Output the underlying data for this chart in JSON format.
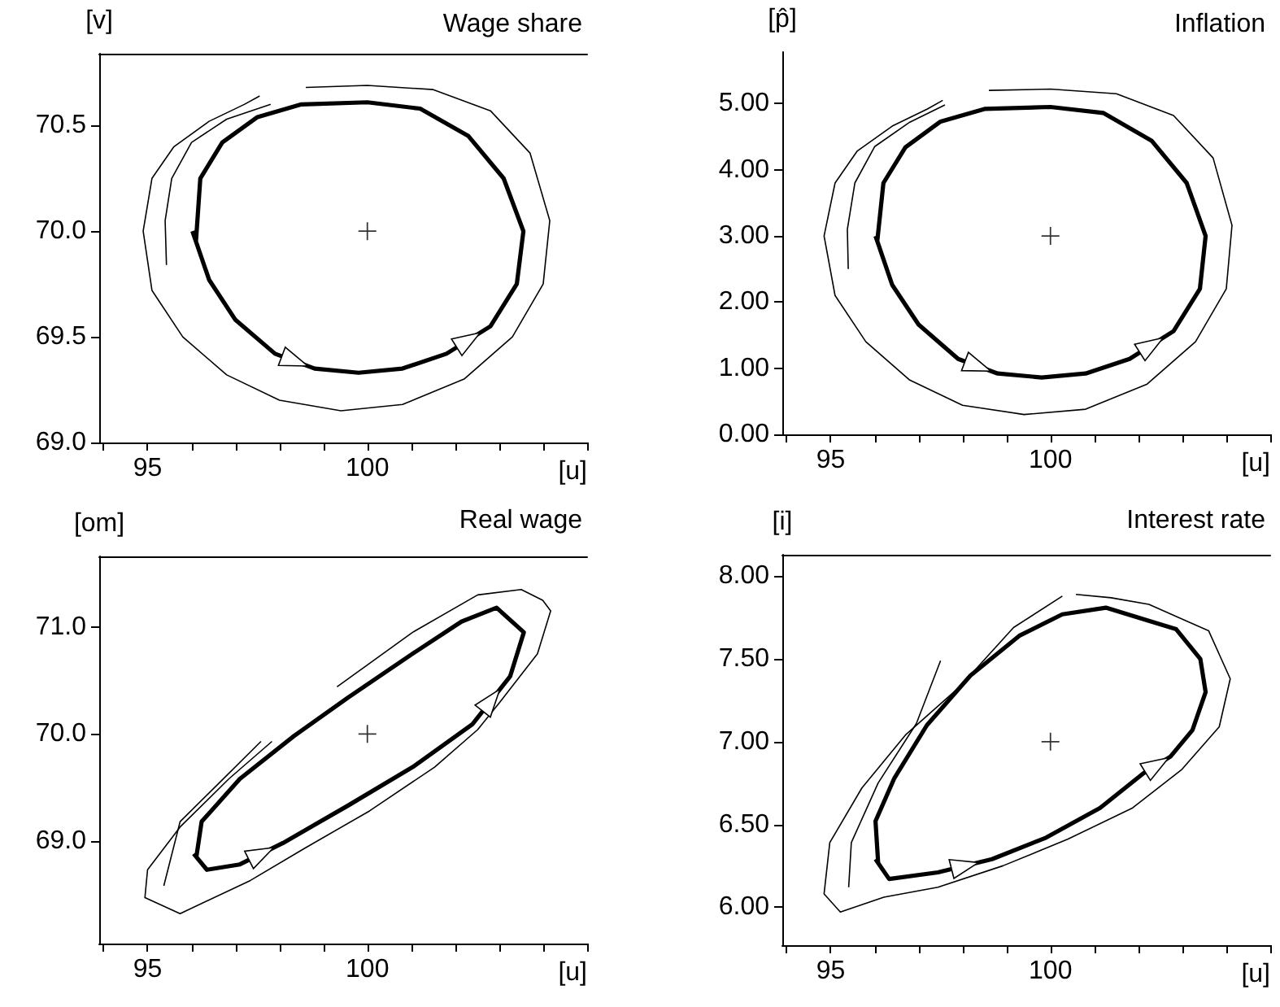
{
  "chart_data": [
    {
      "type": "line",
      "title": "Wage share",
      "xlabel": "[u]",
      "ylabel": "[v]",
      "marker": "none",
      "xlim": [
        93.9,
        105
      ],
      "xticks": [
        {
          "value": 94,
          "label": null
        },
        {
          "value": 95,
          "label": "95"
        },
        {
          "value": 96,
          "label": null
        },
        {
          "value": 97,
          "label": null
        },
        {
          "value": 98,
          "label": null
        },
        {
          "value": 99,
          "label": null
        },
        {
          "value": 100,
          "label": "100"
        },
        {
          "value": 101,
          "label": null
        },
        {
          "value": 102,
          "label": null
        },
        {
          "value": 103,
          "label": null
        },
        {
          "value": 104,
          "label": null
        },
        {
          "value": 105,
          "label": null
        }
      ],
      "ylim": [
        69.0,
        70.84
      ],
      "yticks": [
        {
          "value": 69.0,
          "label": "69.0"
        },
        {
          "value": 69.5,
          "label": "69.5"
        },
        {
          "value": 70.0,
          "label": "70.0"
        },
        {
          "value": 70.5,
          "label": "70.5"
        }
      ],
      "series": [
        {
          "color": "#000000",
          "x": [
            96.02,
            96.4,
            97.0,
            97.9,
            98.8,
            99.8,
            100.8,
            101.8,
            102.8,
            103.4,
            103.55,
            103.1,
            102.3,
            101.2,
            100.0,
            98.5,
            97.5,
            96.7,
            96.2,
            96.1
          ],
          "values": [
            70.0,
            69.77,
            69.58,
            69.42,
            69.35,
            69.33,
            69.35,
            69.42,
            69.55,
            69.75,
            70.0,
            70.25,
            70.45,
            70.58,
            70.61,
            70.6,
            70.54,
            70.42,
            70.25,
            69.95
          ]
        },
        {
          "color": "#000000",
          "x": [
            97.55,
            97.2,
            96.4,
            95.6,
            95.1,
            94.9,
            95.1,
            95.8,
            96.8,
            98.0,
            99.4,
            100.8,
            102.2,
            103.3,
            104.0,
            104.15,
            103.7,
            102.8,
            101.5,
            100.0,
            98.6
          ],
          "values": [
            70.64,
            70.6,
            70.52,
            70.4,
            70.25,
            70.0,
            69.72,
            69.5,
            69.32,
            69.2,
            69.15,
            69.18,
            69.3,
            69.5,
            69.75,
            70.05,
            70.37,
            70.57,
            70.67,
            70.69,
            70.68
          ]
        },
        {
          "color": "#000000",
          "x": [
            97.8,
            96.8,
            96.0,
            95.55,
            95.4,
            95.43
          ],
          "values": [
            70.6,
            70.53,
            70.42,
            70.25,
            70.05,
            69.84
          ]
        },
        {
          "type": "scatter",
          "marker": "cross",
          "color": "#000000",
          "x": [
            100
          ],
          "values": [
            70.0
          ]
        }
      ]
    },
    {
      "type": "line",
      "title": "Inflation",
      "xlabel": "[u]",
      "ylabel": "[p̂]",
      "marker": "none",
      "xlim": [
        93.9,
        105
      ],
      "xticks": [
        {
          "value": 94,
          "label": null
        },
        {
          "value": 95,
          "label": "95"
        },
        {
          "value": 96,
          "label": null
        },
        {
          "value": 97,
          "label": null
        },
        {
          "value": 98,
          "label": null
        },
        {
          "value": 99,
          "label": null
        },
        {
          "value": 100,
          "label": "100"
        },
        {
          "value": 101,
          "label": null
        },
        {
          "value": 102,
          "label": null
        },
        {
          "value": 103,
          "label": null
        },
        {
          "value": 104,
          "label": null
        },
        {
          "value": 105,
          "label": null
        }
      ],
      "ylim": [
        0,
        5.78
      ],
      "yticks": [
        {
          "value": 0,
          "label": "0.00"
        },
        {
          "value": 1,
          "label": "1.00"
        },
        {
          "value": 2,
          "label": "2.00"
        },
        {
          "value": 3,
          "label": "3.00"
        },
        {
          "value": 4,
          "label": "4.00"
        },
        {
          "value": 5,
          "label": "5.00"
        }
      ],
      "series": [
        {
          "color": "#000000",
          "x": [
            96.02,
            96.4,
            97.0,
            97.9,
            98.8,
            99.8,
            100.8,
            101.8,
            102.8,
            103.4,
            103.53,
            103.1,
            102.3,
            101.2,
            100.0,
            98.5,
            97.5,
            96.7,
            96.2,
            96.06
          ],
          "values": [
            3.0,
            2.26,
            1.66,
            1.14,
            0.92,
            0.86,
            0.92,
            1.14,
            1.56,
            2.2,
            3.0,
            3.8,
            4.44,
            4.86,
            4.95,
            4.92,
            4.73,
            4.34,
            3.8,
            2.92
          ]
        },
        {
          "color": "#000000",
          "x": [
            97.55,
            97.2,
            96.4,
            95.6,
            95.1,
            94.85,
            95.1,
            95.8,
            96.8,
            98.0,
            99.4,
            100.8,
            102.2,
            103.3,
            104.0,
            104.13,
            103.7,
            102.8,
            101.5,
            100.0,
            98.6
          ],
          "values": [
            5.05,
            4.92,
            4.66,
            4.28,
            3.8,
            3.0,
            2.1,
            1.4,
            0.82,
            0.44,
            0.3,
            0.38,
            0.76,
            1.4,
            2.2,
            3.16,
            4.18,
            4.82,
            5.15,
            5.22,
            5.2
          ]
        },
        {
          "color": "#000000",
          "x": [
            97.6,
            96.8,
            96.0,
            95.55,
            95.38,
            95.4
          ],
          "values": [
            4.98,
            4.72,
            4.35,
            3.8,
            3.1,
            2.5
          ]
        },
        {
          "type": "scatter",
          "marker": "cross",
          "color": "#000000",
          "x": [
            100
          ],
          "values": [
            3.0
          ]
        }
      ]
    },
    {
      "type": "line",
      "title": "Real wage",
      "xlabel": "[u]",
      "ylabel": "[om]",
      "marker": "none",
      "xlim": [
        93.9,
        105
      ],
      "xticks": [
        {
          "value": 94,
          "label": null
        },
        {
          "value": 95,
          "label": "95"
        },
        {
          "value": 96,
          "label": null
        },
        {
          "value": 97,
          "label": null
        },
        {
          "value": 98,
          "label": null
        },
        {
          "value": 99,
          "label": null
        },
        {
          "value": 100,
          "label": "100"
        },
        {
          "value": 101,
          "label": null
        },
        {
          "value": 102,
          "label": null
        },
        {
          "value": 103,
          "label": null
        },
        {
          "value": 104,
          "label": null
        },
        {
          "value": 105,
          "label": null
        }
      ],
      "ylim": [
        68.04,
        71.66
      ],
      "yticks": [
        {
          "value": 69,
          "label": "69.0"
        },
        {
          "value": 70,
          "label": "70.0"
        },
        {
          "value": 71,
          "label": "71.0"
        }
      ],
      "series": [
        {
          "color": "#000000",
          "x": [
            96.05,
            96.35,
            97.1,
            98.08,
            99.56,
            101.03,
            102.39,
            103.25,
            103.56,
            102.94,
            102.14,
            101.03,
            99.56,
            98.33,
            97.1,
            96.23,
            96.11
          ],
          "values": [
            68.88,
            68.73,
            68.78,
            68.98,
            69.33,
            69.69,
            70.09,
            70.54,
            70.95,
            71.18,
            71.05,
            70.75,
            70.34,
            69.98,
            69.58,
            69.18,
            68.85
          ]
        },
        {
          "color": "#000000",
          "x": [
            97.83,
            96.85,
            95.74,
            95.0,
            94.94,
            95.74,
            97.34,
            98.57,
            100.05,
            101.53,
            102.51,
            103.0,
            103.87,
            104.17,
            103.99,
            103.5,
            102.51,
            101.03,
            99.31
          ],
          "values": [
            69.93,
            69.58,
            69.13,
            68.73,
            68.47,
            68.32,
            68.63,
            68.93,
            69.28,
            69.69,
            70.04,
            70.29,
            70.75,
            71.15,
            71.25,
            71.35,
            71.3,
            70.95,
            70.44
          ]
        },
        {
          "color": "#000000",
          "x": [
            97.58,
            96.6,
            95.74,
            95.37
          ],
          "values": [
            69.93,
            69.53,
            69.18,
            68.58
          ]
        },
        {
          "type": "scatter",
          "marker": "cross",
          "color": "#000000",
          "x": [
            100
          ],
          "values": [
            70.0
          ]
        }
      ]
    },
    {
      "type": "line",
      "title": "Interest rate",
      "xlabel": "[u]",
      "ylabel": "[i]",
      "marker": "none",
      "xlim": [
        93.9,
        105
      ],
      "xticks": [
        {
          "value": 94,
          "label": null
        },
        {
          "value": 95,
          "label": "95"
        },
        {
          "value": 96,
          "label": null
        },
        {
          "value": 97,
          "label": null
        },
        {
          "value": 98,
          "label": null
        },
        {
          "value": 99,
          "label": null
        },
        {
          "value": 100,
          "label": "100"
        },
        {
          "value": 101,
          "label": null
        },
        {
          "value": 102,
          "label": null
        },
        {
          "value": 103,
          "label": null
        },
        {
          "value": 104,
          "label": null
        },
        {
          "value": 105,
          "label": null
        }
      ],
      "ylim": [
        5.77,
        8.13
      ],
      "yticks": [
        {
          "value": 6,
          "label": "6.00"
        },
        {
          "value": 6.5,
          "label": "6.50"
        },
        {
          "value": 7,
          "label": "7.00"
        },
        {
          "value": 7.5,
          "label": "7.50"
        },
        {
          "value": 8,
          "label": "8.00"
        }
      ],
      "series": [
        {
          "color": "#000000",
          "x": [
            96.02,
            96.33,
            97.44,
            98.67,
            99.9,
            101.13,
            102.12,
            102.73,
            103.23,
            103.53,
            103.41,
            102.86,
            101.26,
            100.27,
            99.29,
            98.18,
            97.19,
            96.45,
            96.02,
            96.08
          ],
          "values": [
            6.29,
            6.17,
            6.21,
            6.29,
            6.42,
            6.6,
            6.81,
            6.91,
            7.07,
            7.3,
            7.5,
            7.68,
            7.81,
            7.77,
            7.64,
            7.4,
            7.1,
            6.78,
            6.52,
            6.27
          ]
        },
        {
          "color": "#000000",
          "x": [
            100.27,
            99.16,
            97.93,
            96.7,
            95.71,
            94.98,
            94.85,
            95.22,
            96.21,
            97.44,
            98.92,
            100.39,
            101.87,
            102.98,
            103.84,
            104.09,
            103.6,
            102.24,
            101.38,
            100.58
          ],
          "values": [
            7.88,
            7.69,
            7.33,
            7.04,
            6.72,
            6.39,
            6.08,
            5.97,
            6.06,
            6.12,
            6.25,
            6.41,
            6.6,
            6.83,
            7.09,
            7.38,
            7.67,
            7.83,
            7.87,
            7.89
          ]
        },
        {
          "color": "#000000",
          "x": [
            97.5,
            96.95,
            96.08,
            95.47,
            95.41
          ],
          "values": [
            7.49,
            7.11,
            6.75,
            6.39,
            6.12
          ]
        },
        {
          "type": "scatter",
          "marker": "cross",
          "color": "#000000",
          "x": [
            100
          ],
          "values": [
            7.0
          ]
        }
      ]
    }
  ]
}
